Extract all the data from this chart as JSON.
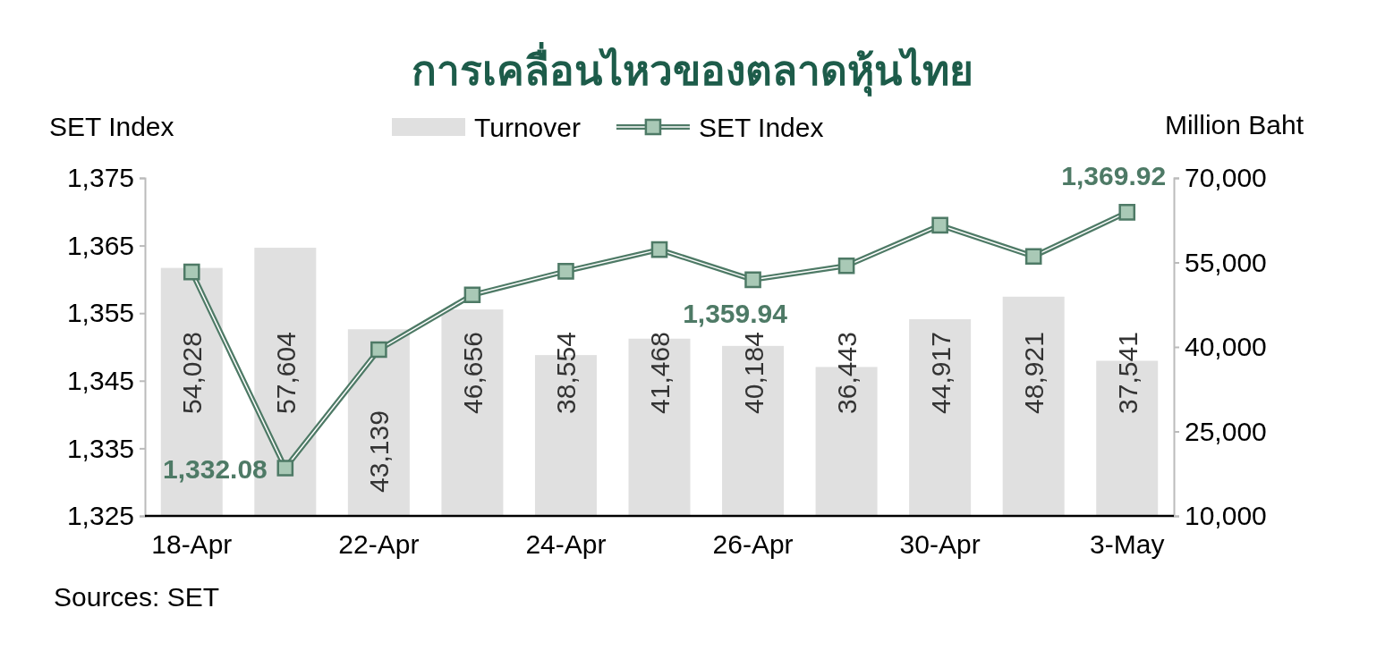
{
  "chart_data": {
    "type": "line",
    "title": "การเคลื่อนไหวของตลาดหุ้นไทย",
    "ylabel": "SET Index",
    "y2label": "Million Baht",
    "categories": [
      "18-Apr",
      null,
      "22-Apr",
      null,
      "24-Apr",
      null,
      "26-Apr",
      null,
      "30-Apr",
      null,
      "3-May"
    ],
    "series": [
      {
        "name": "Turnover",
        "type": "bar",
        "axis": "y2",
        "color": "#e0e0e0",
        "values": [
          54028,
          57604,
          43139,
          46656,
          38554,
          41468,
          40184,
          36443,
          44917,
          48921,
          37541
        ],
        "value_labels": [
          "54,028",
          "57,604",
          "43,139",
          "46,656",
          "38,554",
          "41,468",
          "40,184",
          "36,443",
          "44,917",
          "48,921",
          "37,541"
        ]
      },
      {
        "name": "SET Index",
        "axis": "y",
        "color": "#4e7a66",
        "values": [
          1361.1,
          1332.08,
          1349.6,
          1357.7,
          1361.2,
          1364.4,
          1359.94,
          1362.0,
          1368.0,
          1363.4,
          1369.92
        ],
        "value_labels": [
          null,
          "1,332.08",
          null,
          null,
          null,
          null,
          "1,359.94",
          null,
          null,
          null,
          "1,369.92"
        ]
      }
    ],
    "ylim": [
      1325,
      1375
    ],
    "yticks": [
      {
        "value": 1325,
        "label": "1,325"
      },
      {
        "value": 1335,
        "label": "1,335"
      },
      {
        "value": 1345,
        "label": "1,345"
      },
      {
        "value": 1355,
        "label": "1,355"
      },
      {
        "value": 1365,
        "label": "1,365"
      },
      {
        "value": 1375,
        "label": "1,375"
      }
    ],
    "y2lim": [
      10000,
      70000
    ],
    "y2ticks": [
      {
        "value": 10000,
        "label": "10,000"
      },
      {
        "value": 25000,
        "label": "25,000"
      },
      {
        "value": 40000,
        "label": "40,000"
      },
      {
        "value": 55000,
        "label": "55,000"
      },
      {
        "value": 70000,
        "label": "70,000"
      }
    ],
    "marker": "square",
    "legend": "top",
    "grid": false,
    "annotations": [
      "Sources: SET"
    ]
  }
}
